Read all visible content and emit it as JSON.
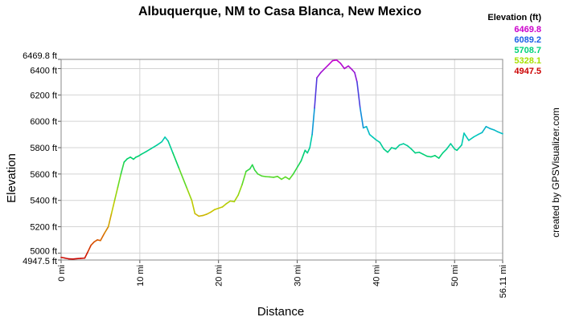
{
  "chart_data": {
    "type": "line",
    "title": "Albuquerque, NM to Casa Blanca, New Mexico",
    "xlabel": "Distance",
    "ylabel": "Elevation",
    "credit": "created by GPSVisualizer.com",
    "xlim": [
      0,
      56.11
    ],
    "ylim": [
      4947.5,
      6469.8
    ],
    "x_ticks": [
      {
        "value": 0,
        "label": "0 mi"
      },
      {
        "value": 10,
        "label": "10 mi"
      },
      {
        "value": 20,
        "label": "20 mi"
      },
      {
        "value": 30,
        "label": "30 mi"
      },
      {
        "value": 40,
        "label": "40 mi"
      },
      {
        "value": 50,
        "label": "50 mi"
      },
      {
        "value": 56.11,
        "label": "56.11 mi"
      }
    ],
    "y_ticks": [
      {
        "value": 4947.5,
        "label": "4947.5 ft"
      },
      {
        "value": 5000,
        "label": "5000 ft"
      },
      {
        "value": 5200,
        "label": "5200 ft"
      },
      {
        "value": 5400,
        "label": "5400 ft"
      },
      {
        "value": 5600,
        "label": "5600 ft"
      },
      {
        "value": 5800,
        "label": "5800 ft"
      },
      {
        "value": 6000,
        "label": "6000 ft"
      },
      {
        "value": 6200,
        "label": "6200 ft"
      },
      {
        "value": 6400,
        "label": "6400 ft"
      },
      {
        "value": 6469.8,
        "label": "6469.8 ft"
      }
    ],
    "grid": true,
    "legend": {
      "title": "Elevation (ft)",
      "position": "top-right",
      "entries": [
        {
          "label": "6469.8",
          "color": "#cc00cc"
        },
        {
          "label": "6089.2",
          "color": "#1a5fe6"
        },
        {
          "label": "5708.7",
          "color": "#00d37a"
        },
        {
          "label": "5328.1",
          "color": "#a8e000"
        },
        {
          "label": "4947.5",
          "color": "#cc0000"
        }
      ]
    },
    "series": [
      {
        "x": [
          0,
          0.5,
          1.0,
          1.5,
          2.0,
          2.5,
          3.0,
          3.4,
          3.8,
          4.2,
          4.6,
          5.0,
          5.5,
          6.0,
          6.4,
          6.8,
          7.2,
          7.6,
          8.0,
          8.4,
          8.8,
          9.2,
          9.5,
          9.8,
          10.2,
          10.8,
          11.5,
          12.2,
          12.8,
          13.2,
          13.6,
          14.2,
          15.0,
          16.0,
          16.6,
          17.0,
          17.5,
          18.0,
          18.5,
          19.0,
          19.5,
          20.0,
          20.5,
          21.0,
          21.5,
          22.0,
          22.5,
          23.0,
          23.5,
          24.0,
          24.3,
          24.6,
          25.0,
          25.5,
          26.0,
          26.5,
          27.0,
          27.5,
          28.0,
          28.5,
          29.0,
          29.5,
          30.0,
          30.5,
          31.0,
          31.3,
          31.6,
          31.9,
          32.2,
          32.5,
          33.0,
          33.5,
          34.0,
          34.5,
          35.0,
          35.5,
          36.0,
          36.5,
          37.0,
          37.3,
          37.6,
          38.0,
          38.4,
          38.8,
          39.2,
          39.6,
          40.0,
          40.5,
          41.0,
          41.5,
          42.0,
          42.5,
          43.0,
          43.5,
          44.0,
          44.5,
          45.0,
          45.5,
          46.0,
          46.5,
          47.0,
          47.5,
          48.0,
          48.5,
          49.0,
          49.5,
          50.0,
          50.3,
          50.6,
          50.9,
          51.2,
          51.8,
          52.4,
          53.0,
          53.5,
          54.0,
          54.5,
          55.0,
          55.5,
          56.11
        ],
        "y": [
          4968,
          4962,
          4956,
          4955,
          4958,
          4960,
          4962,
          5010,
          5060,
          5085,
          5100,
          5095,
          5150,
          5200,
          5300,
          5400,
          5500,
          5600,
          5690,
          5715,
          5728,
          5712,
          5728,
          5735,
          5750,
          5770,
          5795,
          5820,
          5845,
          5880,
          5850,
          5760,
          5640,
          5490,
          5400,
          5300,
          5280,
          5285,
          5295,
          5310,
          5330,
          5340,
          5350,
          5375,
          5395,
          5390,
          5440,
          5520,
          5620,
          5640,
          5670,
          5630,
          5600,
          5585,
          5580,
          5578,
          5575,
          5582,
          5560,
          5578,
          5560,
          5600,
          5650,
          5700,
          5780,
          5760,
          5800,
          5900,
          6100,
          6330,
          6370,
          6400,
          6430,
          6460,
          6465,
          6440,
          6400,
          6420,
          6390,
          6370,
          6300,
          6100,
          5950,
          5960,
          5900,
          5880,
          5860,
          5840,
          5790,
          5765,
          5800,
          5790,
          5820,
          5830,
          5815,
          5790,
          5760,
          5765,
          5750,
          5735,
          5730,
          5740,
          5720,
          5760,
          5790,
          5830,
          5790,
          5780,
          5800,
          5820,
          5910,
          5855,
          5880,
          5900,
          5915,
          5960,
          5945,
          5935,
          5920,
          5905
        ]
      }
    ]
  }
}
